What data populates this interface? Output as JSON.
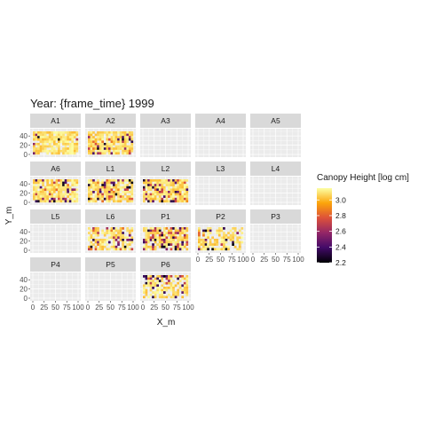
{
  "chart_data": {
    "type": "heatmap",
    "title": "Year: {frame_time} 1999",
    "xlabel": "X_m",
    "ylabel": "Y_m",
    "xlim": [
      0,
      100
    ],
    "ylim": [
      0,
      50
    ],
    "x_ticks": [
      0,
      25,
      50,
      75,
      100
    ],
    "x_tick_labels": [
      "0",
      "25",
      "50",
      "75",
      "100"
    ],
    "y_ticks": [
      0,
      20,
      40
    ],
    "y_tick_labels": [
      "0",
      "20",
      "40"
    ],
    "grid": true,
    "facet_layout": {
      "ncol": 5,
      "nrow": 4
    },
    "panels": [
      {
        "name": "A1",
        "has_data": true,
        "coverage": 0.85,
        "low_density": 0.06,
        "seed": 11
      },
      {
        "name": "A2",
        "has_data": true,
        "coverage": 0.85,
        "low_density": 0.12,
        "seed": 23
      },
      {
        "name": "A3",
        "has_data": false
      },
      {
        "name": "A4",
        "has_data": false
      },
      {
        "name": "A5",
        "has_data": false
      },
      {
        "name": "A6",
        "has_data": true,
        "coverage": 0.85,
        "low_density": 0.12,
        "seed": 37
      },
      {
        "name": "L1",
        "has_data": true,
        "coverage": 0.85,
        "low_density": 0.3,
        "seed": 41
      },
      {
        "name": "L2",
        "has_data": true,
        "coverage": 0.85,
        "low_density": 0.22,
        "seed": 53
      },
      {
        "name": "L3",
        "has_data": false
      },
      {
        "name": "L4",
        "has_data": false
      },
      {
        "name": "L5",
        "has_data": false
      },
      {
        "name": "L6",
        "has_data": true,
        "coverage": 0.7,
        "low_density": 0.25,
        "seed": 61
      },
      {
        "name": "P1",
        "has_data": true,
        "coverage": 0.85,
        "low_density": 0.3,
        "seed": 71
      },
      {
        "name": "P2",
        "has_data": true,
        "coverage": 0.6,
        "low_density": 0.15,
        "seed": 83
      },
      {
        "name": "P3",
        "has_data": false
      },
      {
        "name": "P4",
        "has_data": false
      },
      {
        "name": "P5",
        "has_data": false
      },
      {
        "name": "P6",
        "has_data": true,
        "coverage": 0.7,
        "low_density": 0.25,
        "seed": 97
      }
    ],
    "legend": {
      "title": "Canopy Height [log cm]",
      "placement": "right",
      "min": 2.2,
      "max": 3.15,
      "breaks": [
        2.2,
        2.4,
        2.6,
        2.8,
        3.0
      ],
      "break_labels": [
        "2.2",
        "2.4",
        "2.6",
        "2.8",
        "3.0"
      ],
      "colormap": "inferno",
      "colors": [
        "#000004",
        "#420a68",
        "#932667",
        "#dd513a",
        "#fca50a",
        "#fcffa4"
      ]
    },
    "panel_background": "#ebebeb",
    "strip_background": "#d9d9d9",
    "empty_cell_color": "#ebebeb"
  }
}
